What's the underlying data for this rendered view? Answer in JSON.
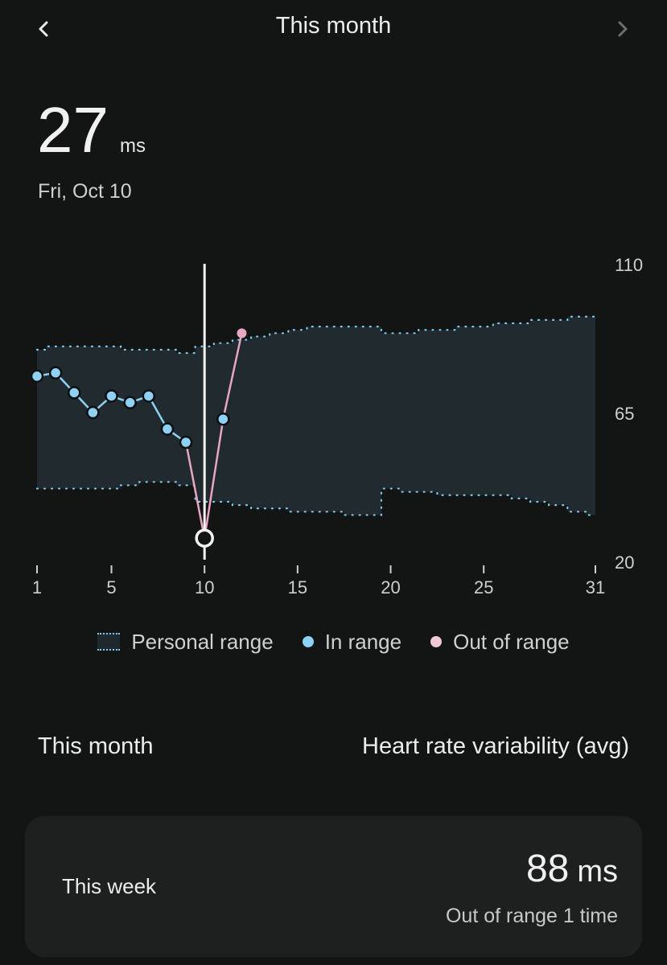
{
  "header": {
    "title": "This month",
    "prev_icon": "chevron-left-icon",
    "next_icon": "chevron-right-icon"
  },
  "selected": {
    "value": "27",
    "unit": "ms",
    "date": "Fri, Oct 10"
  },
  "chart_data": {
    "type": "line",
    "title": "",
    "xlabel": "",
    "ylabel": "",
    "x_ticks": [
      "1",
      "5",
      "10",
      "15",
      "20",
      "25",
      "31"
    ],
    "y_ticks": [
      "110",
      "65",
      "20"
    ],
    "xlim": [
      1,
      31
    ],
    "ylim": [
      20,
      110
    ],
    "selected_day": 10,
    "range_band": {
      "name": "Personal range",
      "days": [
        1,
        2,
        3,
        4,
        5,
        6,
        7,
        8,
        9,
        10,
        11,
        12,
        13,
        14,
        15,
        16,
        17,
        18,
        19,
        20,
        21,
        22,
        23,
        24,
        25,
        26,
        27,
        28,
        29,
        30,
        31
      ],
      "upper": [
        84,
        85,
        85,
        85,
        85,
        84,
        84,
        84,
        83,
        85,
        86,
        87,
        88,
        89,
        90,
        91,
        91,
        91,
        91,
        89,
        89,
        90,
        90,
        91,
        91,
        92,
        92,
        93,
        93,
        94,
        94
      ],
      "lower": [
        42,
        42,
        42,
        42,
        42,
        43,
        44,
        44,
        43,
        38,
        38,
        37,
        36,
        36,
        35,
        35,
        35,
        34,
        34,
        42,
        41,
        41,
        40,
        40,
        40,
        40,
        39,
        38,
        37,
        35,
        34
      ]
    },
    "series": [
      {
        "name": "HRV",
        "days": [
          1,
          2,
          3,
          4,
          5,
          6,
          7,
          8,
          9,
          10,
          11,
          12
        ],
        "values": [
          76,
          77,
          71,
          65,
          70,
          68,
          70,
          60,
          56,
          27,
          63,
          89
        ],
        "status": [
          "in",
          "in",
          "in",
          "in",
          "in",
          "in",
          "in",
          "in",
          "in",
          "out",
          "in",
          "out"
        ]
      }
    ],
    "colors": {
      "in_range": "#8fd0f5",
      "out_of_range": "#e7a7c2",
      "band_fill": "#212a2e",
      "band_edge": "#7ec8ee",
      "cursor": "#f2f2f2"
    }
  },
  "legend": {
    "range": "Personal range",
    "in": "In range",
    "out": "Out of range"
  },
  "summary": {
    "period": "This month",
    "metric": "Heart rate variability (avg)"
  },
  "card": {
    "label": "This week",
    "value": "88",
    "unit": "ms",
    "sub": "Out of range 1 time"
  }
}
